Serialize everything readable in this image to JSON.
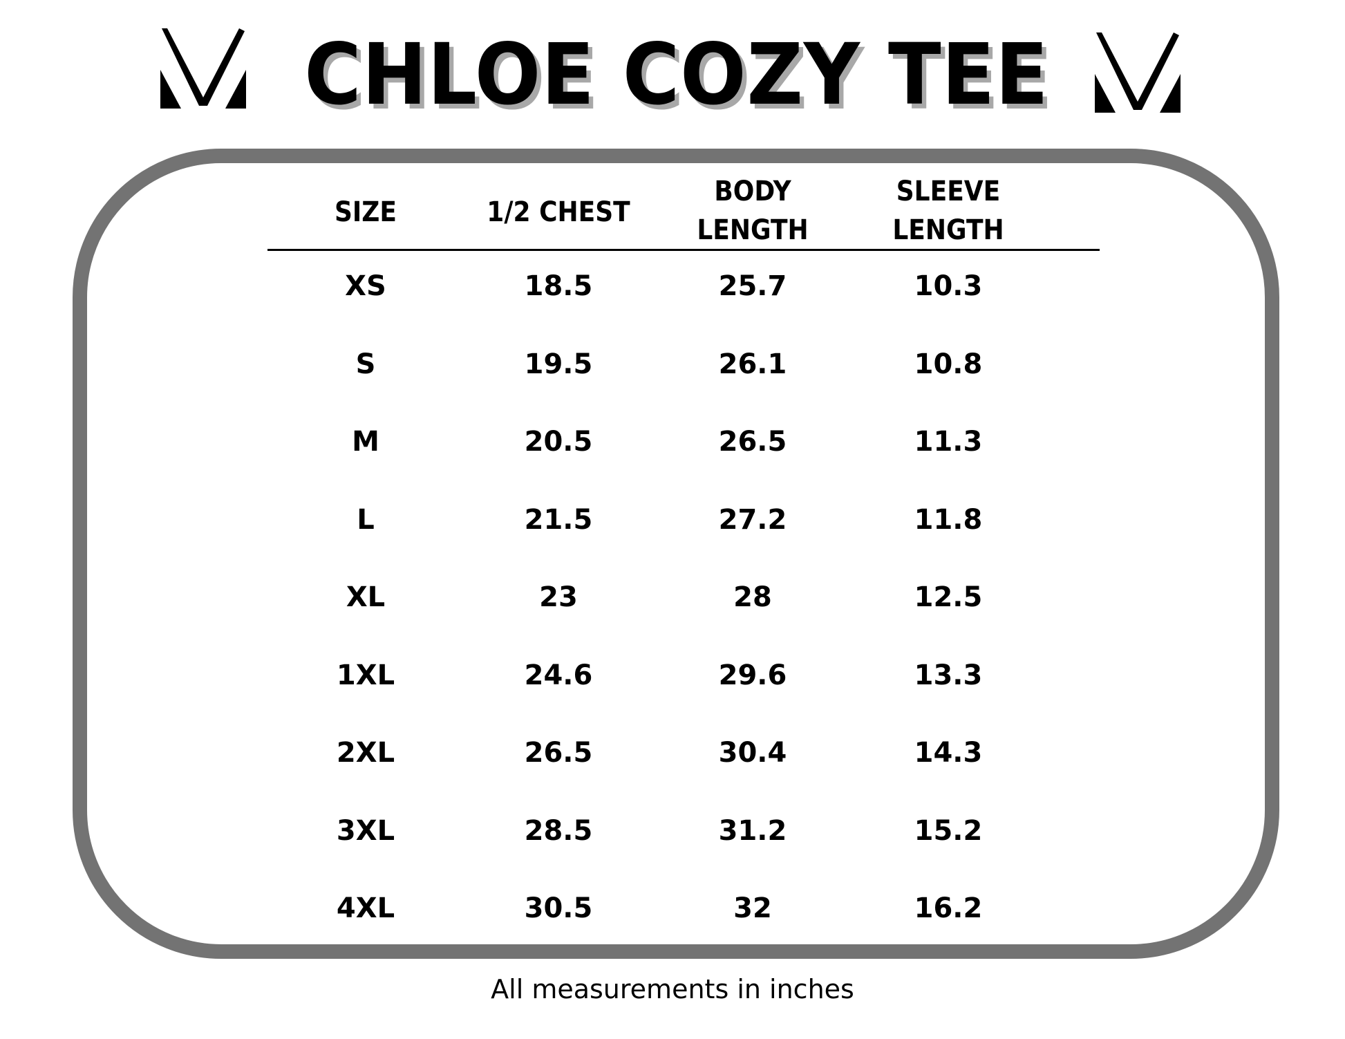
{
  "title": "CHLOE COZY TEE",
  "logo_icon": "stylized-m-logo-icon",
  "table": {
    "headers": [
      [
        "SIZE"
      ],
      [
        "1/2 CHEST"
      ],
      [
        "BODY",
        "LENGTH"
      ],
      [
        "SLEEVE",
        "LENGTH"
      ]
    ],
    "rows": [
      [
        "XS",
        "18.5",
        "25.7",
        "10.3"
      ],
      [
        "S",
        "19.5",
        "26.1",
        "10.8"
      ],
      [
        "M",
        "20.5",
        "26.5",
        "11.3"
      ],
      [
        "L",
        "21.5",
        "27.2",
        "11.8"
      ],
      [
        "XL",
        "23",
        "28",
        "12.5"
      ],
      [
        "1XL",
        "24.6",
        "29.6",
        "13.3"
      ],
      [
        "2XL",
        "26.5",
        "30.4",
        "14.3"
      ],
      [
        "3XL",
        "28.5",
        "31.2",
        "15.2"
      ],
      [
        "4XL",
        "30.5",
        "32",
        "16.2"
      ]
    ]
  },
  "footer": "All measurements in inches",
  "colors": {
    "border": "#737373",
    "title_shadow": "#a8a8a8",
    "text": "#000000"
  }
}
